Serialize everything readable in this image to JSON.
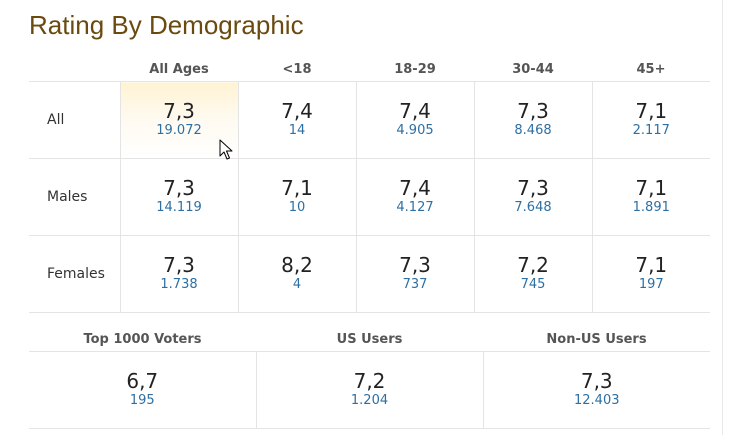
{
  "title": "Rating By Demographic",
  "age_headers": [
    "All Ages",
    "<18",
    "18-29",
    "30-44",
    "45+"
  ],
  "rows": [
    {
      "label": "All",
      "cells": [
        {
          "rating": "7,3",
          "votes": "19.072"
        },
        {
          "rating": "7,4",
          "votes": "14"
        },
        {
          "rating": "7,4",
          "votes": "4.905"
        },
        {
          "rating": "7,3",
          "votes": "8.468"
        },
        {
          "rating": "7,1",
          "votes": "2.117"
        }
      ]
    },
    {
      "label": "Males",
      "cells": [
        {
          "rating": "7,3",
          "votes": "14.119"
        },
        {
          "rating": "7,1",
          "votes": "10"
        },
        {
          "rating": "7,4",
          "votes": "4.127"
        },
        {
          "rating": "7,3",
          "votes": "7.648"
        },
        {
          "rating": "7,1",
          "votes": "1.891"
        }
      ]
    },
    {
      "label": "Females",
      "cells": [
        {
          "rating": "7,3",
          "votes": "1.738"
        },
        {
          "rating": "8,2",
          "votes": "4"
        },
        {
          "rating": "7,3",
          "votes": "737"
        },
        {
          "rating": "7,2",
          "votes": "745"
        },
        {
          "rating": "7,1",
          "votes": "197"
        }
      ]
    }
  ],
  "bottom_headers": [
    "Top 1000 Voters",
    "US Users",
    "Non-US Users"
  ],
  "bottom_cells": [
    {
      "rating": "6,7",
      "votes": "195"
    },
    {
      "rating": "7,2",
      "votes": "1.204"
    },
    {
      "rating": "7,3",
      "votes": "12.403"
    }
  ],
  "colors": {
    "title": "#6b4a0f",
    "votes_link": "#2d6fa3",
    "highlight": "#fff3d2",
    "grid": "#e4e4e4"
  },
  "icons": {
    "cursor": "mouse-pointer-icon"
  }
}
